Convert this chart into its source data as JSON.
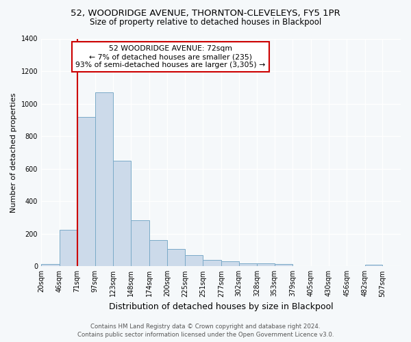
{
  "title1": "52, WOODRIDGE AVENUE, THORNTON-CLEVELEYS, FY5 1PR",
  "title2": "Size of property relative to detached houses in Blackpool",
  "xlabel": "Distribution of detached houses by size in Blackpool",
  "ylabel": "Number of detached properties",
  "footer1": "Contains HM Land Registry data © Crown copyright and database right 2024.",
  "footer2": "Contains public sector information licensed under the Open Government Licence v3.0.",
  "annotation_line1": "52 WOODRIDGE AVENUE: 72sqm",
  "annotation_line2": "← 7% of detached houses are smaller (235)",
  "annotation_line3": "93% of semi-detached houses are larger (3,305) →",
  "property_size": 72,
  "bar_color": "#ccdaea",
  "bar_edge_color": "#7aaac8",
  "vline_color": "#cc0000",
  "annotation_box_edgecolor": "#cc0000",
  "annotation_fill": "#ffffff",
  "bins": [
    20,
    46,
    71,
    97,
    123,
    148,
    174,
    200,
    225,
    251,
    277,
    302,
    328,
    353,
    379,
    405,
    430,
    456,
    482,
    507,
    533
  ],
  "counts": [
    15,
    225,
    920,
    1070,
    650,
    285,
    160,
    105,
    70,
    40,
    30,
    20,
    20,
    12,
    0,
    0,
    0,
    0,
    10,
    0
  ],
  "ylim": [
    0,
    1400
  ],
  "yticks": [
    0,
    200,
    400,
    600,
    800,
    1000,
    1200,
    1400
  ],
  "background_color": "#f5f8fa",
  "grid_color": "#ffffff",
  "tick_label_fontsize": 7,
  "ylabel_fontsize": 8,
  "xlabel_fontsize": 9
}
